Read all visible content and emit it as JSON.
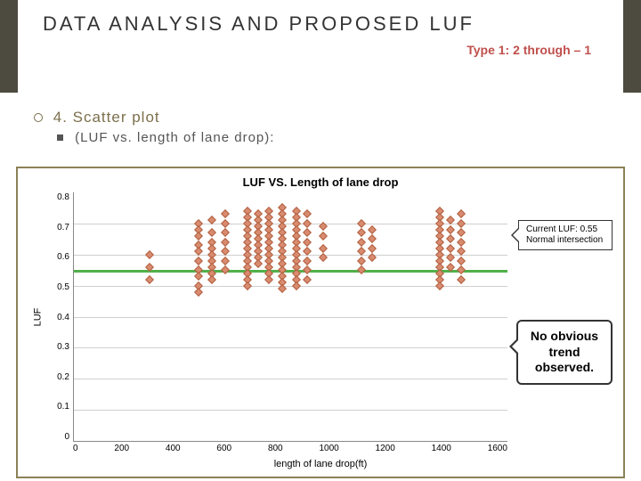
{
  "header": {
    "title": "DATA ANALYSIS AND PROPOSED LUF",
    "subtitle": "Type 1: 2 through – 1"
  },
  "bullets": {
    "line1": "4. Scatter plot",
    "line2": "(LUF vs. length of lane drop):"
  },
  "chart": {
    "type": "scatter",
    "title": "LUF VS. Length of lane drop",
    "yaxis_label": "LUF",
    "xaxis_label": "length of lane drop(ft)",
    "xlim": [
      0,
      1600
    ],
    "ylim": [
      0,
      0.8
    ],
    "xticks": [
      0,
      200,
      400,
      600,
      800,
      1000,
      1200,
      1400,
      1600
    ],
    "yticks": [
      "0.8",
      "0.7",
      "0.6",
      "0.5",
      "0.4",
      "0.3",
      "0.2",
      "0.1",
      "0"
    ],
    "grid_y_positions_pct": [
      12.5,
      25,
      37.5,
      50,
      62.5,
      75,
      87.5
    ],
    "luf_line_value": 0.55,
    "marker_color": "#d98b6f",
    "marker_border": "#b06040",
    "grid_color": "#cfcfcf",
    "axis_color": "#888",
    "line_color": "#52b04a",
    "points": [
      [
        280,
        0.6
      ],
      [
        280,
        0.56
      ],
      [
        280,
        0.52
      ],
      [
        460,
        0.7
      ],
      [
        460,
        0.68
      ],
      [
        460,
        0.66
      ],
      [
        460,
        0.63
      ],
      [
        460,
        0.61
      ],
      [
        460,
        0.58
      ],
      [
        460,
        0.55
      ],
      [
        460,
        0.53
      ],
      [
        460,
        0.5
      ],
      [
        460,
        0.48
      ],
      [
        510,
        0.71
      ],
      [
        510,
        0.67
      ],
      [
        510,
        0.64
      ],
      [
        510,
        0.62
      ],
      [
        510,
        0.6
      ],
      [
        510,
        0.58
      ],
      [
        510,
        0.56
      ],
      [
        510,
        0.54
      ],
      [
        510,
        0.52
      ],
      [
        560,
        0.73
      ],
      [
        560,
        0.7
      ],
      [
        560,
        0.67
      ],
      [
        560,
        0.64
      ],
      [
        560,
        0.61
      ],
      [
        560,
        0.58
      ],
      [
        560,
        0.55
      ],
      [
        640,
        0.74
      ],
      [
        640,
        0.72
      ],
      [
        640,
        0.7
      ],
      [
        640,
        0.68
      ],
      [
        640,
        0.66
      ],
      [
        640,
        0.64
      ],
      [
        640,
        0.62
      ],
      [
        640,
        0.6
      ],
      [
        640,
        0.58
      ],
      [
        640,
        0.56
      ],
      [
        640,
        0.54
      ],
      [
        640,
        0.52
      ],
      [
        640,
        0.5
      ],
      [
        680,
        0.73
      ],
      [
        680,
        0.71
      ],
      [
        680,
        0.69
      ],
      [
        680,
        0.67
      ],
      [
        680,
        0.65
      ],
      [
        680,
        0.63
      ],
      [
        680,
        0.61
      ],
      [
        680,
        0.59
      ],
      [
        680,
        0.57
      ],
      [
        720,
        0.74
      ],
      [
        720,
        0.72
      ],
      [
        720,
        0.7
      ],
      [
        720,
        0.68
      ],
      [
        720,
        0.66
      ],
      [
        720,
        0.64
      ],
      [
        720,
        0.62
      ],
      [
        720,
        0.6
      ],
      [
        720,
        0.58
      ],
      [
        720,
        0.56
      ],
      [
        720,
        0.54
      ],
      [
        720,
        0.52
      ],
      [
        770,
        0.75
      ],
      [
        770,
        0.73
      ],
      [
        770,
        0.71
      ],
      [
        770,
        0.69
      ],
      [
        770,
        0.67
      ],
      [
        770,
        0.65
      ],
      [
        770,
        0.63
      ],
      [
        770,
        0.61
      ],
      [
        770,
        0.59
      ],
      [
        770,
        0.57
      ],
      [
        770,
        0.55
      ],
      [
        770,
        0.53
      ],
      [
        770,
        0.51
      ],
      [
        770,
        0.49
      ],
      [
        820,
        0.74
      ],
      [
        820,
        0.72
      ],
      [
        820,
        0.7
      ],
      [
        820,
        0.68
      ],
      [
        820,
        0.66
      ],
      [
        820,
        0.64
      ],
      [
        820,
        0.62
      ],
      [
        820,
        0.6
      ],
      [
        820,
        0.58
      ],
      [
        820,
        0.56
      ],
      [
        820,
        0.54
      ],
      [
        820,
        0.52
      ],
      [
        820,
        0.5
      ],
      [
        860,
        0.73
      ],
      [
        860,
        0.7
      ],
      [
        860,
        0.67
      ],
      [
        860,
        0.64
      ],
      [
        860,
        0.61
      ],
      [
        860,
        0.58
      ],
      [
        860,
        0.55
      ],
      [
        860,
        0.52
      ],
      [
        920,
        0.69
      ],
      [
        920,
        0.66
      ],
      [
        920,
        0.62
      ],
      [
        920,
        0.59
      ],
      [
        1060,
        0.7
      ],
      [
        1060,
        0.67
      ],
      [
        1060,
        0.64
      ],
      [
        1060,
        0.61
      ],
      [
        1060,
        0.58
      ],
      [
        1060,
        0.55
      ],
      [
        1100,
        0.68
      ],
      [
        1100,
        0.65
      ],
      [
        1100,
        0.62
      ],
      [
        1100,
        0.59
      ],
      [
        1350,
        0.74
      ],
      [
        1350,
        0.72
      ],
      [
        1350,
        0.7
      ],
      [
        1350,
        0.68
      ],
      [
        1350,
        0.66
      ],
      [
        1350,
        0.64
      ],
      [
        1350,
        0.62
      ],
      [
        1350,
        0.6
      ],
      [
        1350,
        0.58
      ],
      [
        1350,
        0.56
      ],
      [
        1350,
        0.54
      ],
      [
        1350,
        0.52
      ],
      [
        1350,
        0.5
      ],
      [
        1390,
        0.71
      ],
      [
        1390,
        0.68
      ],
      [
        1390,
        0.65
      ],
      [
        1390,
        0.62
      ],
      [
        1390,
        0.59
      ],
      [
        1390,
        0.56
      ],
      [
        1430,
        0.73
      ],
      [
        1430,
        0.7
      ],
      [
        1430,
        0.67
      ],
      [
        1430,
        0.64
      ],
      [
        1430,
        0.61
      ],
      [
        1430,
        0.58
      ],
      [
        1430,
        0.55
      ],
      [
        1430,
        0.52
      ]
    ]
  },
  "callouts": {
    "top_line1": "Current LUF: 0.55",
    "top_line2": "Normal intersection",
    "bottom": "No obvious trend observed."
  }
}
